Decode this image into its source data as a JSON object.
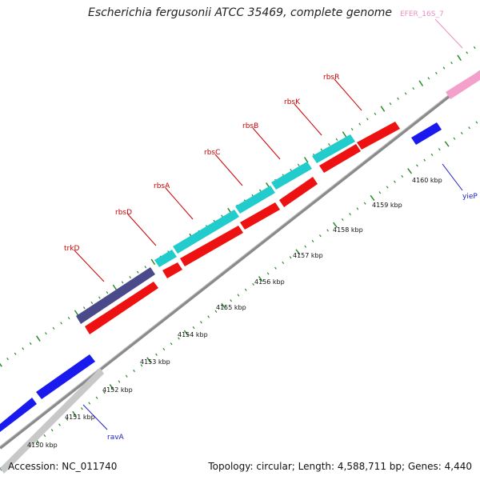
{
  "title": "Escherichia fergusonii ATCC 35469, complete genome",
  "footer": {
    "accession": "Accession: NC_011740",
    "summary": "Topology: circular; Length: 4,588,711 bp; Genes: 4,440"
  },
  "colors": {
    "backbone": "#7a7a7a",
    "tick": "#2a8a2a",
    "cds": "#ee1111",
    "label_red": "#cc0000",
    "label_blue": "#1a1acc",
    "label_pink": "#e890c0",
    "rbs": "#22cccc",
    "trk": "#4a4a8a",
    "blue_gene": "#1a1aee",
    "pink_gene": "#f4a0cc",
    "grey_gene": "#c8c8c8"
  },
  "kbp_ticks": [
    "4150 kbp",
    "4151 kbp",
    "4152 kbp",
    "4153 kbp",
    "4154 kbp",
    "4155 kbp",
    "4156 kbp",
    "4157 kbp",
    "4158 kbp",
    "4159 kbp",
    "4160 kbp"
  ],
  "genes": [
    {
      "name": "trkD",
      "color": "label_red"
    },
    {
      "name": "rbsD",
      "color": "label_red"
    },
    {
      "name": "rbsA",
      "color": "label_red"
    },
    {
      "name": "rbsC",
      "color": "label_red"
    },
    {
      "name": "rbsB",
      "color": "label_red"
    },
    {
      "name": "rbsK",
      "color": "label_red"
    },
    {
      "name": "rbsR",
      "color": "label_red"
    },
    {
      "name": "ravA",
      "color": "label_blue"
    },
    {
      "name": "yieP",
      "color": "label_blue"
    },
    {
      "name": "EFER_16S_7",
      "color": "label_pink"
    }
  ]
}
